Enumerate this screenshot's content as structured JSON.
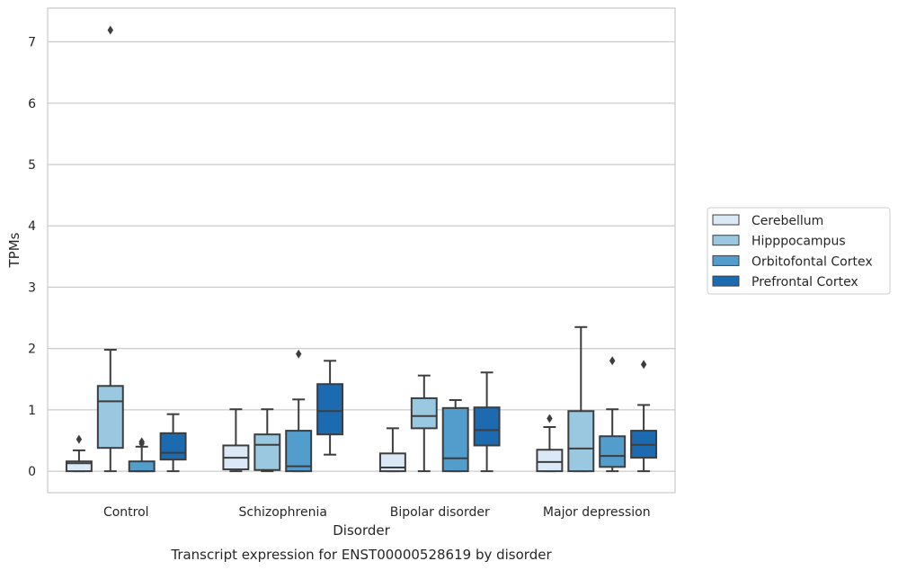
{
  "chart_data": {
    "type": "box",
    "xlabel": "Disorder",
    "ylabel": "TPMs",
    "caption": "Transcript expression for ENST00000528619 by disorder",
    "ylim": [
      -0.35,
      7.55
    ],
    "yticks": [
      0,
      1,
      2,
      3,
      4,
      5,
      6,
      7
    ],
    "grid": "horizontal",
    "legend_position": "right",
    "categories": [
      "Control",
      "Schizophrenia",
      "Bipolar disorder",
      "Major depression"
    ],
    "series": [
      {
        "name": "Cerebellum",
        "color": "#dbe9f6",
        "boxes": [
          {
            "whislo": 0.0,
            "q1": 0.0,
            "med": 0.13,
            "q3": 0.16,
            "whishi": 0.34,
            "fliers": [
              0.52
            ]
          },
          {
            "whislo": 0.0,
            "q1": 0.03,
            "med": 0.22,
            "q3": 0.42,
            "whishi": 1.01,
            "fliers": []
          },
          {
            "whislo": 0.0,
            "q1": 0.0,
            "med": 0.06,
            "q3": 0.29,
            "whishi": 0.7,
            "fliers": []
          },
          {
            "whislo": 0.0,
            "q1": 0.0,
            "med": 0.15,
            "q3": 0.35,
            "whishi": 0.72,
            "fliers": [
              0.86
            ]
          }
        ]
      },
      {
        "name": "Hipppocampus",
        "color": "#9ac8e0",
        "boxes": [
          {
            "whislo": 0.0,
            "q1": 0.38,
            "med": 1.14,
            "q3": 1.39,
            "whishi": 1.98,
            "fliers": [
              7.19
            ]
          },
          {
            "whislo": 0.0,
            "q1": 0.02,
            "med": 0.43,
            "q3": 0.6,
            "whishi": 1.01,
            "fliers": []
          },
          {
            "whislo": 0.0,
            "q1": 0.7,
            "med": 0.9,
            "q3": 1.19,
            "whishi": 1.56,
            "fliers": []
          },
          {
            "whislo": 0.0,
            "q1": 0.0,
            "med": 0.37,
            "q3": 0.98,
            "whishi": 2.35,
            "fliers": []
          }
        ]
      },
      {
        "name": "Orbitofontal Cortex",
        "color": "#529dcc",
        "boxes": [
          {
            "whislo": 0.0,
            "q1": 0.0,
            "med": 0.0,
            "q3": 0.16,
            "whishi": 0.4,
            "fliers": [
              0.45,
              0.48
            ]
          },
          {
            "whislo": 0.0,
            "q1": 0.0,
            "med": 0.08,
            "q3": 0.66,
            "whishi": 1.17,
            "fliers": [
              1.91
            ]
          },
          {
            "whislo": 0.0,
            "q1": 0.0,
            "med": 0.21,
            "q3": 1.03,
            "whishi": 1.16,
            "fliers": []
          },
          {
            "whislo": 0.0,
            "q1": 0.07,
            "med": 0.25,
            "q3": 0.57,
            "whishi": 1.01,
            "fliers": [
              1.8
            ]
          }
        ]
      },
      {
        "name": "Prefrontal Cortex",
        "color": "#1c6aaf",
        "boxes": [
          {
            "whislo": 0.0,
            "q1": 0.19,
            "med": 0.3,
            "q3": 0.62,
            "whishi": 0.93,
            "fliers": []
          },
          {
            "whislo": 0.27,
            "q1": 0.6,
            "med": 0.98,
            "q3": 1.42,
            "whishi": 1.8,
            "fliers": []
          },
          {
            "whislo": 0.0,
            "q1": 0.42,
            "med": 0.67,
            "q3": 1.04,
            "whishi": 1.61,
            "fliers": []
          },
          {
            "whislo": 0.0,
            "q1": 0.22,
            "med": 0.43,
            "q3": 0.66,
            "whishi": 1.08,
            "fliers": [
              1.74
            ]
          }
        ]
      }
    ]
  }
}
